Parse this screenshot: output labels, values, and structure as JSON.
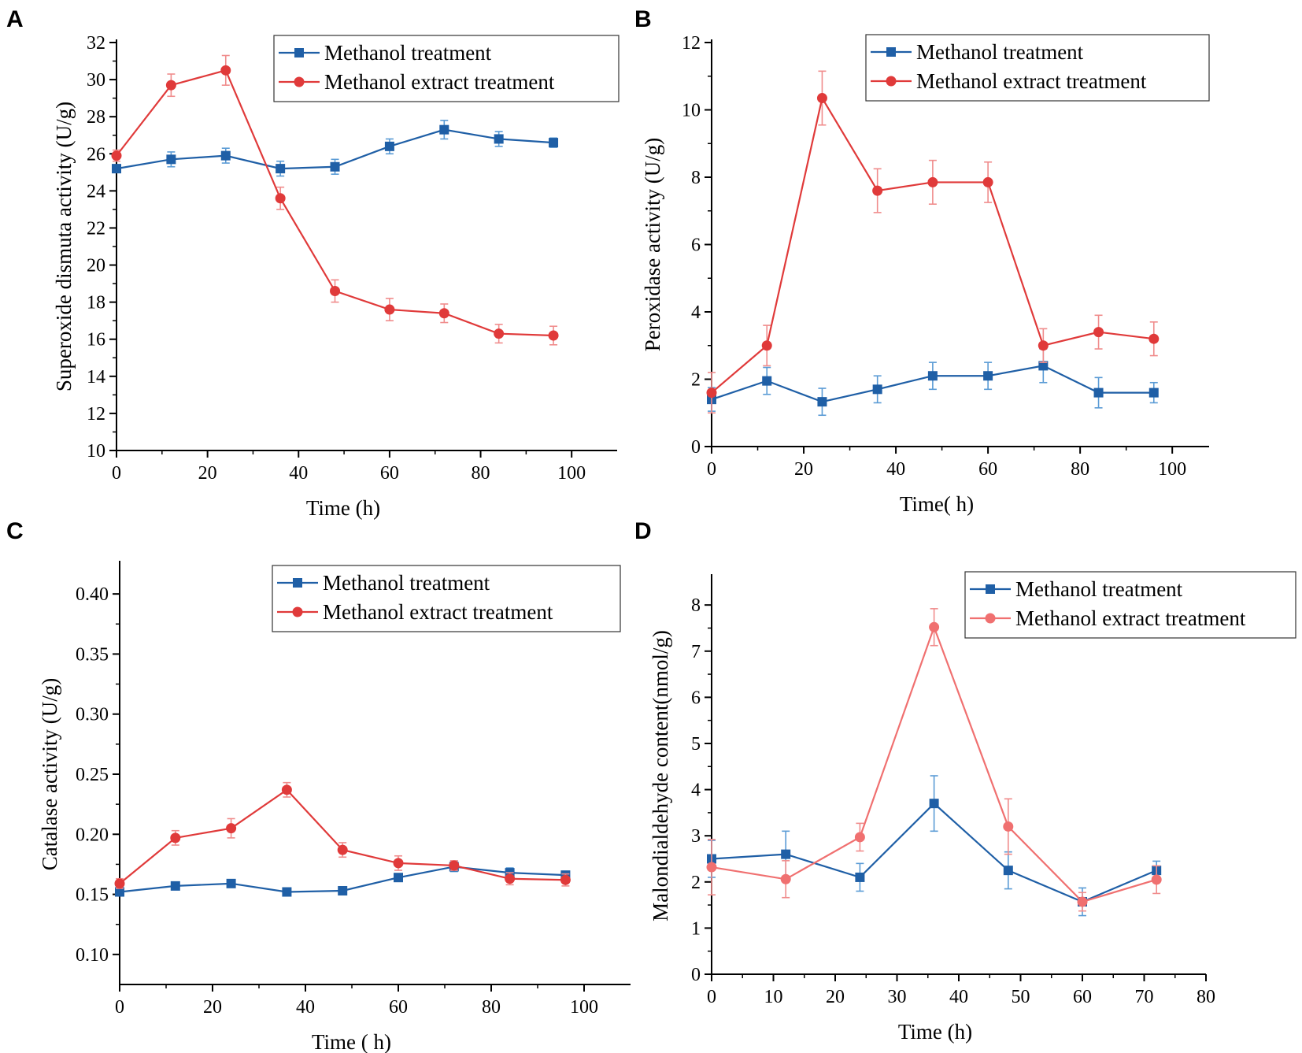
{
  "colors": {
    "methanol": "#1f5fa6",
    "extract": "#e03a3a",
    "extract_light": "#f07070",
    "errbar_methanol": "#5a9bd5",
    "errbar_extract": "#f08c8c"
  },
  "chart_data": [
    {
      "type": "line",
      "panel": "A",
      "xlabel": "Time (h)",
      "ylabel": "Superoxide dismuta activity (U/g)",
      "xlim": [
        0,
        110
      ],
      "ylim": [
        10,
        32
      ],
      "xticks": [
        0,
        20,
        40,
        60,
        80,
        100
      ],
      "yticks": [
        10,
        12,
        14,
        16,
        18,
        20,
        22,
        24,
        26,
        28,
        30,
        32
      ],
      "ytick_labels": [
        "10",
        "12",
        "14",
        "16",
        "18",
        "20",
        "22",
        "24",
        "26",
        "28",
        "30",
        "32"
      ],
      "xtick_labels": [
        "0",
        "20",
        "40",
        "60",
        "80",
        "100"
      ],
      "legend_position": "top-right",
      "series": [
        {
          "name": "Methanol treatment",
          "marker": "square",
          "color_key": "methanol",
          "x": [
            0,
            12,
            24,
            36,
            48,
            60,
            72,
            84,
            96
          ],
          "y": [
            25.2,
            25.7,
            25.9,
            25.2,
            25.3,
            26.4,
            27.3,
            26.8,
            26.6
          ],
          "err": [
            0.2,
            0.4,
            0.4,
            0.4,
            0.4,
            0.4,
            0.5,
            0.4,
            0.25
          ]
        },
        {
          "name": "Methanol extract treatment",
          "marker": "circle",
          "color_key": "extract",
          "x": [
            0,
            12,
            24,
            36,
            48,
            60,
            72,
            84,
            96
          ],
          "y": [
            25.9,
            29.7,
            30.5,
            23.6,
            18.6,
            17.6,
            17.4,
            16.3,
            16.2
          ],
          "err": [
            0.3,
            0.6,
            0.8,
            0.6,
            0.6,
            0.6,
            0.5,
            0.5,
            0.5
          ]
        }
      ]
    },
    {
      "type": "line",
      "panel": "B",
      "xlabel": "Time( h)",
      "ylabel": "Peroxidase activity (U/g)",
      "xlim": [
        0,
        108
      ],
      "ylim": [
        0,
        12
      ],
      "xticks": [
        0,
        20,
        40,
        60,
        80,
        100
      ],
      "yticks": [
        0,
        2,
        4,
        6,
        8,
        10,
        12
      ],
      "ytick_labels": [
        "0",
        "2",
        "4",
        "6",
        "8",
        "10",
        "12"
      ],
      "xtick_labels": [
        "0",
        "20",
        "40",
        "60",
        "80",
        "100"
      ],
      "legend_position": "top-right",
      "series": [
        {
          "name": "Methanol treatment",
          "marker": "square",
          "color_key": "methanol",
          "x": [
            0,
            12,
            24,
            36,
            48,
            60,
            72,
            84,
            96
          ],
          "y": [
            1.4,
            1.95,
            1.33,
            1.7,
            2.1,
            2.1,
            2.4,
            1.6,
            1.6
          ],
          "err": [
            0.35,
            0.4,
            0.4,
            0.4,
            0.4,
            0.4,
            0.5,
            0.45,
            0.3
          ]
        },
        {
          "name": "Methanol extract treatment",
          "marker": "circle",
          "color_key": "extract",
          "x": [
            0,
            12,
            24,
            36,
            48,
            60,
            72,
            84,
            96
          ],
          "y": [
            1.6,
            3.0,
            10.35,
            7.6,
            7.85,
            7.85,
            3.0,
            3.4,
            3.2
          ],
          "err": [
            0.6,
            0.6,
            0.8,
            0.65,
            0.65,
            0.6,
            0.5,
            0.5,
            0.5
          ]
        }
      ]
    },
    {
      "type": "line",
      "panel": "C",
      "xlabel": "Time ( h)",
      "ylabel": "Catalase activity (U/g)",
      "xlim": [
        0,
        110
      ],
      "ylim": [
        0.075,
        0.425
      ],
      "xticks": [
        0,
        20,
        40,
        60,
        80,
        100
      ],
      "yticks": [
        0.1,
        0.15,
        0.2,
        0.25,
        0.3,
        0.35,
        0.4
      ],
      "ytick_labels": [
        "0.10",
        "0.15",
        "0.20",
        "0.25",
        "0.30",
        "0.35",
        "0.40"
      ],
      "xtick_labels": [
        "0",
        "20",
        "40",
        "60",
        "80",
        "100"
      ],
      "legend_position": "top-right",
      "series": [
        {
          "name": "Methanol treatment",
          "marker": "square",
          "color_key": "methanol",
          "x": [
            0,
            12,
            24,
            36,
            48,
            60,
            72,
            84,
            96
          ],
          "y": [
            0.152,
            0.157,
            0.159,
            0.152,
            0.153,
            0.164,
            0.173,
            0.168,
            0.166
          ],
          "err": [
            0.002,
            0.002,
            0.002,
            0.002,
            0.002,
            0.002,
            0.004,
            0.004,
            0.002
          ]
        },
        {
          "name": "Methanol extract treatment",
          "marker": "circle",
          "color_key": "extract",
          "x": [
            0,
            12,
            24,
            36,
            48,
            60,
            72,
            84,
            96
          ],
          "y": [
            0.159,
            0.197,
            0.205,
            0.237,
            0.187,
            0.176,
            0.174,
            0.163,
            0.162
          ],
          "err": [
            0.004,
            0.006,
            0.008,
            0.006,
            0.006,
            0.006,
            0.004,
            0.005,
            0.005
          ]
        }
      ]
    },
    {
      "type": "line",
      "panel": "D",
      "xlabel": "Time (h)",
      "ylabel": "Malondialdehyde content(nmol/g)",
      "xlim": [
        0,
        80
      ],
      "ylim": [
        0,
        8.6
      ],
      "xticks": [
        0,
        10,
        20,
        30,
        40,
        50,
        60,
        70,
        80
      ],
      "yticks": [
        0,
        1,
        2,
        3,
        4,
        5,
        6,
        7,
        8
      ],
      "ytick_labels": [
        "0",
        "1",
        "2",
        "3",
        "4",
        "5",
        "6",
        "7",
        "8"
      ],
      "xtick_labels": [
        "0",
        "10",
        "20",
        "30",
        "40",
        "50",
        "60",
        "70",
        "80"
      ],
      "legend_position": "top-right",
      "series": [
        {
          "name": "Methanol treatment",
          "marker": "square",
          "color_key": "methanol",
          "x": [
            0,
            12,
            24,
            36,
            48,
            60,
            72
          ],
          "y": [
            2.5,
            2.6,
            2.1,
            3.7,
            2.25,
            1.57,
            2.25
          ],
          "err": [
            0.4,
            0.5,
            0.3,
            0.6,
            0.4,
            0.3,
            0.2
          ]
        },
        {
          "name": "Methanol extract treatment",
          "marker": "circle",
          "color_key": "extract_light",
          "x": [
            0,
            12,
            24,
            36,
            48,
            60,
            72
          ],
          "y": [
            2.32,
            2.06,
            2.97,
            7.52,
            3.2,
            1.57,
            2.05
          ],
          "err": [
            0.6,
            0.4,
            0.3,
            0.4,
            0.6,
            0.2,
            0.3
          ]
        }
      ]
    }
  ]
}
